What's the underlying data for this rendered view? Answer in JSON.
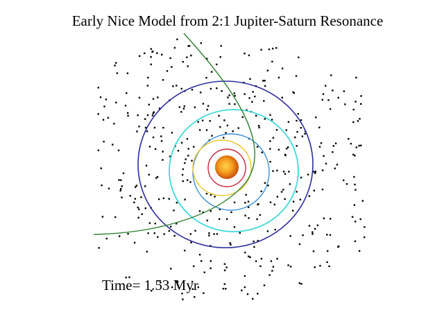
{
  "title": "Early Nice Model from 2:1 Jupiter-Saturn Resonance",
  "time_label": "Time= 1.53 Myr"
}
